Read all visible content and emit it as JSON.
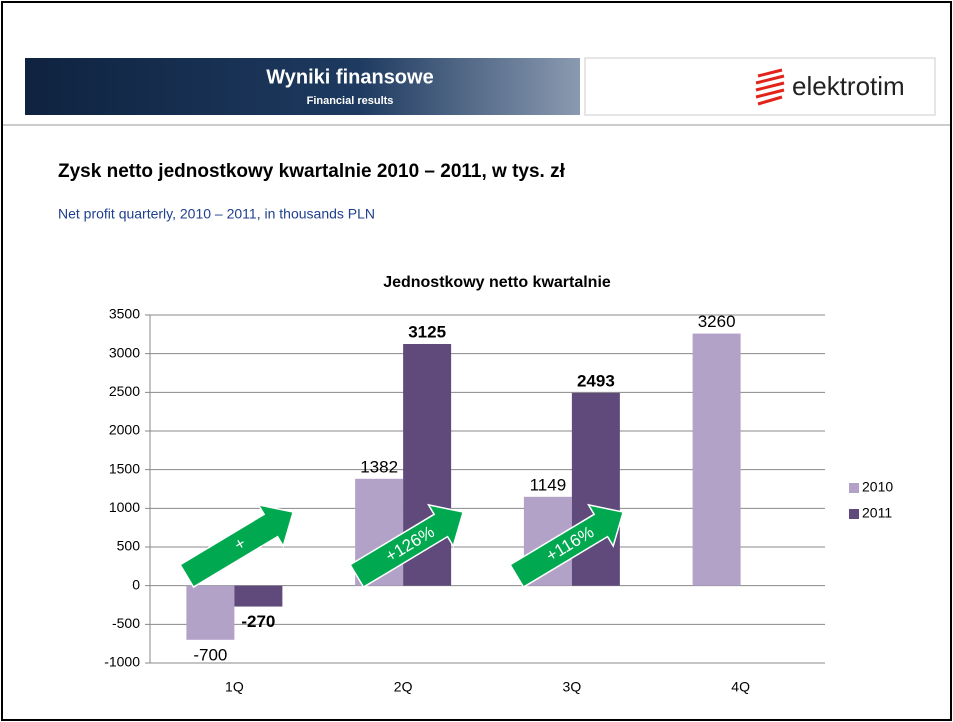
{
  "header": {
    "title": "Wyniki finansowe",
    "subtitle": "Financial results",
    "logo": "elektrotim"
  },
  "slide": {
    "title": "Zysk netto jednostkowy kwartalnie 2010 – 2011, w tys. zł",
    "subtitle": "Net profit quarterly, 2010 – 2011, in thousands PLN"
  },
  "chart_data": {
    "type": "bar",
    "title": "Jednostkowy netto kwartalnie",
    "categories": [
      "1Q",
      "2Q",
      "3Q",
      "4Q"
    ],
    "series": [
      {
        "name": "2010",
        "color": "#b3a2c7",
        "values": [
          -700,
          1382,
          1149,
          3260
        ]
      },
      {
        "name": "2011",
        "color": "#604a7b",
        "values": [
          -270,
          3125,
          2493,
          null
        ]
      }
    ],
    "ylim": [
      -1000,
      3500
    ],
    "yticks": [
      -1000,
      -500,
      0,
      500,
      1000,
      1500,
      2000,
      2500,
      3000,
      3500
    ],
    "grid": true,
    "legend": "right",
    "annotations": [
      "+",
      "+126%",
      "+116%"
    ],
    "annotation_color": "#00a94f"
  }
}
